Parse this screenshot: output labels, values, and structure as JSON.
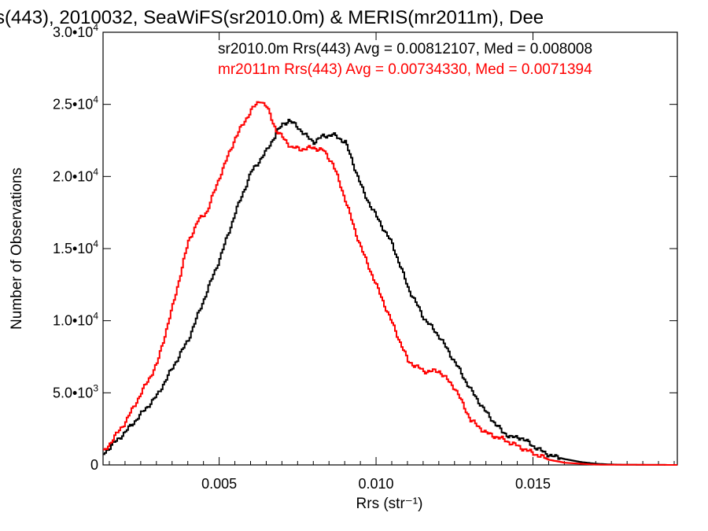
{
  "chart_data": {
    "type": "line",
    "title": "s(443), 2010032, SeaWiFS(sr2010.0m) & MERIS(mr2011m), Dee",
    "xlabel": "Rrs (str⁻¹)",
    "ylabel": "Number of Observations",
    "xlim": [
      0.0013,
      0.0196
    ],
    "ylim": [
      0,
      30000
    ],
    "xticks": [
      {
        "value": 0.005,
        "label": "0.005"
      },
      {
        "value": 0.01,
        "label": "0.010"
      },
      {
        "value": 0.015,
        "label": "0.015"
      }
    ],
    "yticks": [
      {
        "value": 0,
        "label": "0"
      },
      {
        "value": 5000,
        "label": "5.0•10",
        "exp": "3"
      },
      {
        "value": 10000,
        "label": "1.0•10",
        "exp": "4"
      },
      {
        "value": 15000,
        "label": "1.5•10",
        "exp": "4"
      },
      {
        "value": 20000,
        "label": "2.0•10",
        "exp": "4"
      },
      {
        "value": 25000,
        "label": "2.5•10",
        "exp": "4"
      },
      {
        "value": 30000,
        "label": "3.0•10",
        "exp": "4"
      }
    ],
    "legend": [
      {
        "text": "sr2010.0m Rrs(443) Avg = 0.00812107, Med = 0.008008",
        "color": "#000000"
      },
      {
        "text": "mr2011m Rrs(443) Avg = 0.00734330, Med = 0.0071394",
        "color": "#ff0000"
      }
    ],
    "series": [
      {
        "color": "#000000",
        "x": [
          0.0013,
          0.002,
          0.003,
          0.004,
          0.005,
          0.0055,
          0.006,
          0.0065,
          0.0068,
          0.007,
          0.0072,
          0.0075,
          0.0078,
          0.008,
          0.0083,
          0.0086,
          0.009,
          0.0093,
          0.0096,
          0.01,
          0.0105,
          0.011,
          0.0115,
          0.012,
          0.0125,
          0.013,
          0.0135,
          0.014,
          0.0143,
          0.0146,
          0.0148,
          0.015,
          0.0153,
          0.0156,
          0.016,
          0.0165,
          0.017,
          0.0175,
          0.018,
          0.0196
        ],
        "y": [
          800,
          2300,
          4800,
          8700,
          14300,
          17500,
          20300,
          21800,
          23000,
          23600,
          23900,
          23400,
          22700,
          22400,
          22800,
          22900,
          22400,
          20600,
          18800,
          17200,
          15300,
          12300,
          10200,
          8900,
          7100,
          5200,
          3600,
          2300,
          1900,
          1900,
          1600,
          1300,
          900,
          600,
          400,
          200,
          80,
          30,
          10,
          0
        ]
      },
      {
        "color": "#ff0000",
        "x": [
          0.0013,
          0.002,
          0.003,
          0.0035,
          0.004,
          0.0043,
          0.0046,
          0.005,
          0.0055,
          0.006,
          0.0063,
          0.0065,
          0.0068,
          0.007,
          0.0073,
          0.0076,
          0.008,
          0.0083,
          0.0086,
          0.009,
          0.0093,
          0.0096,
          0.01,
          0.0105,
          0.011,
          0.0115,
          0.012,
          0.0125,
          0.013,
          0.0135,
          0.014,
          0.0145,
          0.015,
          0.0155,
          0.016,
          0.0165,
          0.017,
          0.0196
        ],
        "y": [
          900,
          3000,
          7000,
          11000,
          15500,
          16900,
          17600,
          20000,
          22700,
          24600,
          25300,
          24800,
          23200,
          22700,
          22000,
          21900,
          22000,
          21800,
          20900,
          18400,
          16300,
          14500,
          12400,
          9800,
          7200,
          6500,
          6500,
          5300,
          3100,
          2200,
          1800,
          1300,
          800,
          350,
          150,
          80,
          20,
          0
        ]
      }
    ]
  }
}
